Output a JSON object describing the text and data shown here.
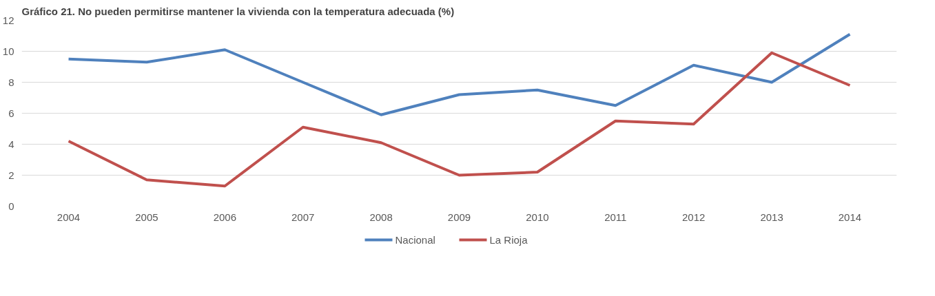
{
  "chart_data": {
    "type": "line",
    "title": "Gráfico 21. No pueden permitirse mantener la vivienda con la temperatura adecuada (%)",
    "categories": [
      "2004",
      "2005",
      "2006",
      "2007",
      "2008",
      "2009",
      "2010",
      "2011",
      "2012",
      "2013",
      "2014"
    ],
    "series": [
      {
        "name": "Nacional",
        "color": "#4f81bd",
        "values": [
          9.5,
          9.3,
          10.1,
          8.0,
          5.9,
          7.2,
          7.5,
          6.5,
          9.1,
          8.0,
          11.1
        ]
      },
      {
        "name": "La Rioja",
        "color": "#c0504d",
        "values": [
          4.2,
          1.7,
          1.3,
          5.1,
          4.1,
          2.0,
          2.2,
          5.5,
          5.3,
          9.9,
          7.8
        ]
      }
    ],
    "ylim": [
      0,
      12
    ],
    "yticks": [
      0,
      2,
      4,
      6,
      8,
      10,
      12
    ],
    "grid": "y",
    "legend": "bottom",
    "line_style": "solid"
  }
}
